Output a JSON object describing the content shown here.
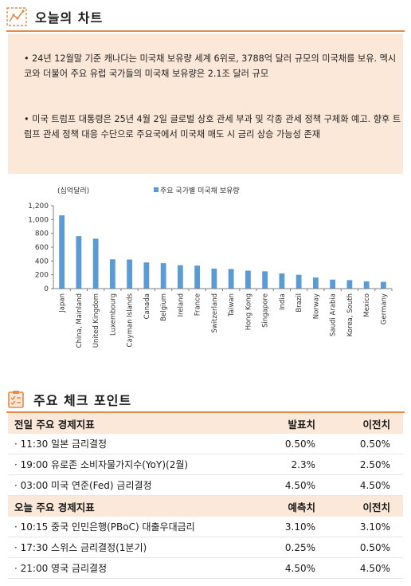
{
  "chart_section": {
    "title": "오늘의 차트",
    "bullets": [
      "• 24년 12월말 기준 캐나다는 미국채 보유량 세계 6위로, 3788억 달러 규모의 미국채를 보유. 멕시코와 더불어 주요 유럽 국가들의 미국채 보유량은 2.1조 달러 규모",
      "• 미국 트럼프 대통령은 25년 4월 2일 글로벌 상호 관세 부과 및 각종 관세 정책 구체화 예고. 향후 트럼프 관세 정책 대응 수단으로 주요국에서 미국채 매도 시 금리 상승 가능성 존재"
    ]
  },
  "chart_data": {
    "type": "bar",
    "unit_label": "(십억달러)",
    "legend": "주요 국가별 미국채 보유량",
    "legend_placement": "top",
    "series": [
      {
        "name": "주요 국가별 미국채 보유량",
        "color": "#5b9bd5"
      }
    ],
    "categories": [
      "Japan",
      "China, Mainland",
      "United Kingdom",
      "Luxembourg",
      "Cayman Islands",
      "Canada",
      "Belgium",
      "Ireland",
      "France",
      "Switzerland",
      "Taiwan",
      "Hong Kong",
      "Singapore",
      "India",
      "Brazil",
      "Norway",
      "Saudi Arabia",
      "Korea, South",
      "Mexico",
      "Germany"
    ],
    "values": [
      1060,
      760,
      723,
      424,
      421,
      379,
      368,
      339,
      333,
      290,
      284,
      260,
      250,
      220,
      200,
      160,
      130,
      123,
      105,
      98
    ],
    "ylim": [
      0,
      1200
    ],
    "yticks": [
      "0",
      "200",
      "400",
      "600",
      "800",
      "1,000",
      "1,200"
    ],
    "grid": false
  },
  "check_section": {
    "title": "주요 체크 포인트",
    "prev_table": {
      "header": [
        "전일 주요 경제지표",
        "발표치",
        "이전치"
      ],
      "rows": [
        [
          "· 11:30 일본 금리결정",
          "0.50%",
          "0.50%"
        ],
        [
          "· 19:00 유로존 소비자물가지수(YoY)(2월)",
          "2.3%",
          "2.50%"
        ],
        [
          "· 03:00 미국 연준(Fed) 금리결정",
          "4.50%",
          "4.50%"
        ]
      ]
    },
    "today_table": {
      "header": [
        "오늘 주요 경제지표",
        "예측치",
        "이전치"
      ],
      "rows": [
        [
          "· 10:15 중국 인민은행(PBoC) 대출우대금리",
          "3.10%",
          "3.10%"
        ],
        [
          "· 17:30 스위스 금리결정(1분기)",
          "0.25%",
          "0.50%"
        ],
        [
          "· 21:00 영국 금리결정",
          "4.50%",
          "4.50%"
        ]
      ]
    }
  },
  "colors": {
    "accent": "#e38b4a",
    "panel_bg": "#fbe8d8",
    "bar": "#5b9bd5"
  },
  "icons": {
    "chart_header": "line-chart-icon",
    "check_header": "checklist-icon"
  }
}
